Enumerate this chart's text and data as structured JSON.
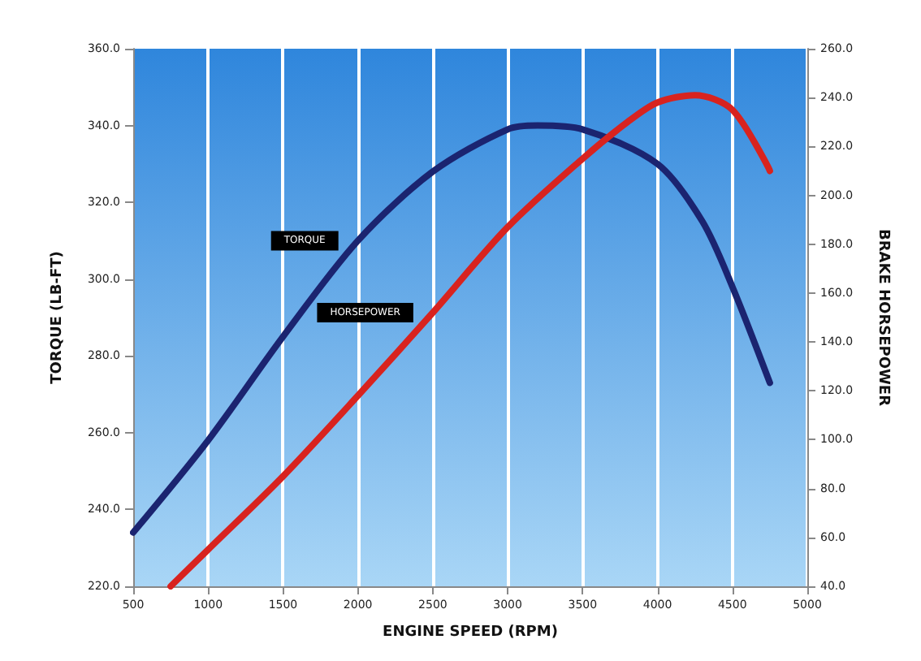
{
  "chart_data": {
    "type": "line",
    "xlabel": "ENGINE SPEED (RPM)",
    "ylabel": "TORQUE (LB-FT)",
    "y2label": "BRAKE HORSEPOWER",
    "series": [
      {
        "name": "TORQUE",
        "color": "#1b2470",
        "x": [
          500,
          1000,
          1500,
          2000,
          2500,
          3000,
          3200,
          3500,
          4000,
          4300,
          4500,
          4750
        ],
        "values": [
          234,
          258,
          285,
          310,
          328,
          339,
          340,
          339,
          330,
          315,
          298,
          273
        ]
      },
      {
        "name": "HORSEPOWER",
        "color": "#d8231f",
        "axis": "y2",
        "x": [
          750,
          1000,
          1500,
          2000,
          2500,
          3000,
          3500,
          3800,
          4000,
          4250,
          4500,
          4750
        ],
        "values": [
          40,
          55,
          85,
          118,
          152,
          187,
          215,
          230,
          238,
          241,
          235,
          210
        ]
      }
    ],
    "xlim": [
      500,
      5000
    ],
    "xticks": [
      500,
      1000,
      1500,
      2000,
      2500,
      3000,
      3500,
      4000,
      4500,
      5000
    ],
    "ylim": [
      220,
      360
    ],
    "yticks": [
      {
        "value": 220,
        "label": "220.0"
      },
      {
        "value": 240,
        "label": "240.0"
      },
      {
        "value": 260,
        "label": "260.0"
      },
      {
        "value": 280,
        "label": "280.0"
      },
      {
        "value": 300,
        "label": "300.0"
      },
      {
        "value": 320,
        "label": "320.0"
      },
      {
        "value": 340,
        "label": "340.0"
      },
      {
        "value": 360,
        "label": "360.0"
      }
    ],
    "y2lim": [
      40,
      260
    ],
    "y2ticks": [
      {
        "value": 40,
        "label": "40.0"
      },
      {
        "value": 60,
        "label": "60.0"
      },
      {
        "value": 80,
        "label": "80.0"
      },
      {
        "value": 100,
        "label": "100.0"
      },
      {
        "value": 120,
        "label": "120.0"
      },
      {
        "value": 140,
        "label": "140.0"
      },
      {
        "value": 160,
        "label": "160.0"
      },
      {
        "value": 180,
        "label": "180.0"
      },
      {
        "value": 200,
        "label": "200.0"
      },
      {
        "value": 220,
        "label": "220.0"
      },
      {
        "value": 240,
        "label": "240.0"
      },
      {
        "value": 260,
        "label": "260.0"
      }
    ],
    "grid": "x",
    "legend": false,
    "marker": "none",
    "line_style": "solid"
  }
}
